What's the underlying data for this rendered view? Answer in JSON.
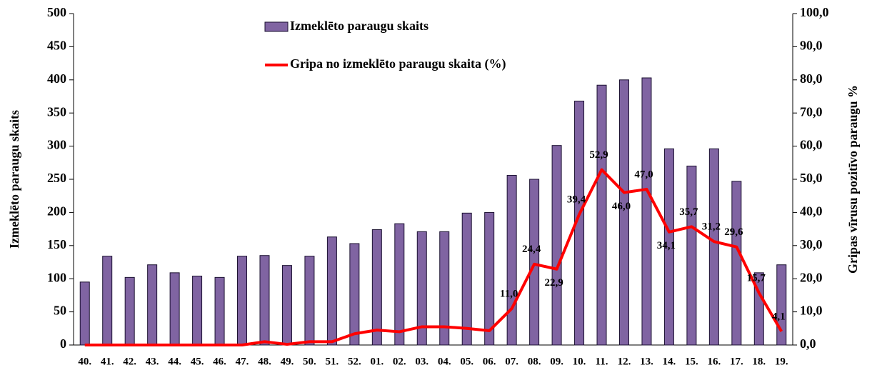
{
  "chart_data": {
    "type": "bar_line",
    "categories": [
      "40.",
      "41.",
      "42.",
      "43.",
      "44.",
      "45.",
      "46.",
      "47.",
      "48.",
      "49.",
      "50.",
      "51.",
      "52.",
      "01.",
      "02.",
      "03.",
      "04.",
      "05.",
      "06.",
      "07.",
      "08.",
      "09.",
      "10.",
      "11.",
      "12.",
      "13.",
      "14.",
      "15.",
      "16.",
      "17.",
      "18.",
      "19."
    ],
    "series": [
      {
        "name": "Izmeklēto paraugu skaits",
        "type": "bar",
        "color": "#8064a2",
        "values": [
          95,
          134,
          102,
          121,
          109,
          104,
          102,
          134,
          135,
          120,
          134,
          163,
          153,
          174,
          183,
          171,
          171,
          199,
          200,
          256,
          250,
          301,
          368,
          392,
          400,
          403,
          296,
          270,
          296,
          247,
          109,
          121
        ]
      },
      {
        "name": "Gripa no izmeklēto paraugu skaita (%)",
        "type": "line",
        "axis": "y2",
        "color": "#ff0000",
        "values": [
          0,
          0,
          0,
          0,
          0,
          0,
          0,
          0,
          1.0,
          0.2,
          1.0,
          1.0,
          3.4,
          4.5,
          4.0,
          5.5,
          5.5,
          5.0,
          4.3,
          11.0,
          24.4,
          22.9,
          39.4,
          52.9,
          46.0,
          47.0,
          34.1,
          35.7,
          31.2,
          29.6,
          15.7,
          4.1
        ],
        "value_labels": [
          null,
          null,
          null,
          null,
          null,
          null,
          null,
          null,
          null,
          null,
          null,
          null,
          null,
          null,
          null,
          null,
          null,
          null,
          null,
          "11,0",
          "24,4",
          "22,9",
          "39,4",
          "52,9",
          "46,0",
          "47,0",
          "34,1",
          "35,7",
          "31,2",
          "29,6",
          "15,7",
          "4,1"
        ]
      }
    ],
    "ylabel": "Izmeklēto paraugu skaits",
    "y2label": "Gripas vīrusu pozitīvo paraugu %",
    "ylim": [
      0,
      500
    ],
    "yticks": [
      0,
      50,
      100,
      150,
      200,
      250,
      300,
      350,
      400,
      450,
      500
    ],
    "y2lim": [
      0,
      100
    ],
    "y2ticks": [
      {
        "value": 0,
        "label": "0,0"
      },
      {
        "value": 10,
        "label": "10,0"
      },
      {
        "value": 20,
        "label": "20,0"
      },
      {
        "value": 30,
        "label": "30,0"
      },
      {
        "value": 40,
        "label": "40,0"
      },
      {
        "value": 50,
        "label": "50,0"
      },
      {
        "value": 60,
        "label": "60,0"
      },
      {
        "value": 70,
        "label": "70,0"
      },
      {
        "value": 80,
        "label": "80,0"
      },
      {
        "value": 90,
        "label": "90,0"
      },
      {
        "value": 100,
        "label": "100,0"
      }
    ]
  }
}
